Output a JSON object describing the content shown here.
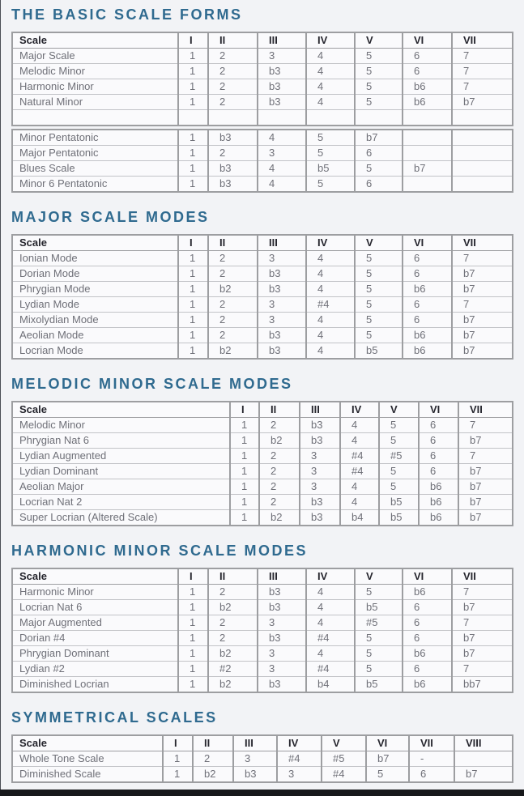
{
  "page": {
    "background_color": "#f2f3f6",
    "accent_color": "#2f6a8f",
    "table_border_color": "#9d9ea1",
    "cell_text_color": "#6f7078",
    "header_text_color": "#26262e",
    "bottom_bar_color": "#17181b"
  },
  "sections": [
    {
      "id": "basic-scale-forms",
      "title": "THE BASIC SCALE FORMS",
      "layout": "basic",
      "tables": [
        {
          "has_header": true,
          "headers": [
            "Scale",
            "I",
            "II",
            "III",
            "IV",
            "V",
            "VI",
            "VII"
          ],
          "rows": [
            [
              "Major Scale",
              "1",
              "2",
              "3",
              "4",
              "5",
              "6",
              "7"
            ],
            [
              "Melodic Minor",
              "1",
              "2",
              "b3",
              "4",
              "5",
              "6",
              "7"
            ],
            [
              "Harmonic Minor",
              "1",
              "2",
              "b3",
              "4",
              "5",
              "b6",
              "7"
            ],
            [
              "Natural Minor",
              "1",
              "2",
              "b3",
              "4",
              "5",
              "b6",
              "b7"
            ],
            [
              "",
              "",
              "",
              "",
              "",
              "",
              "",
              ""
            ]
          ]
        },
        {
          "has_header": false,
          "rows": [
            [
              "Minor Pentatonic",
              "1",
              "b3",
              "4",
              "5",
              "b7",
              "",
              ""
            ],
            [
              "Major Pentatonic",
              "1",
              "2",
              "3",
              "5",
              "6",
              "",
              ""
            ],
            [
              "Blues Scale",
              "1",
              "b3",
              "4",
              "b5",
              "5",
              "b7",
              ""
            ],
            [
              "Minor 6 Pentatonic",
              "1",
              "b3",
              "4",
              "5",
              "6",
              "",
              ""
            ]
          ]
        }
      ]
    },
    {
      "id": "major-scale-modes",
      "title": "MAJOR SCALE MODES",
      "layout": "basic",
      "tables": [
        {
          "has_header": true,
          "headers": [
            "Scale",
            "I",
            "II",
            "III",
            "IV",
            "V",
            "VI",
            "VII"
          ],
          "rows": [
            [
              "Ionian Mode",
              "1",
              "2",
              "3",
              "4",
              "5",
              "6",
              "7"
            ],
            [
              "Dorian Mode",
              "1",
              "2",
              "b3",
              "4",
              "5",
              "6",
              "b7"
            ],
            [
              "Phrygian Mode",
              "1",
              "b2",
              "b3",
              "4",
              "5",
              "b6",
              "b7"
            ],
            [
              "Lydian Mode",
              "1",
              "2",
              "3",
              "#4",
              "5",
              "6",
              "7"
            ],
            [
              "Mixolydian Mode",
              "1",
              "2",
              "3",
              "4",
              "5",
              "6",
              "b7"
            ],
            [
              "Aeolian Mode",
              "1",
              "2",
              "b3",
              "4",
              "5",
              "b6",
              "b7"
            ],
            [
              "Locrian Mode",
              "1",
              "b2",
              "b3",
              "4",
              "b5",
              "b6",
              "b7"
            ]
          ]
        }
      ]
    },
    {
      "id": "melodic-minor-scale-modes",
      "title": "MELODIC MINOR SCALE MODES",
      "layout": "melodic",
      "tables": [
        {
          "has_header": true,
          "headers": [
            "Scale",
            "I",
            "II",
            "III",
            "IV",
            "V",
            "VI",
            "VII"
          ],
          "rows": [
            [
              "Melodic Minor",
              "1",
              "2",
              "b3",
              "4",
              "5",
              "6",
              "7"
            ],
            [
              "Phrygian Nat 6",
              "1",
              "b2",
              "b3",
              "4",
              "5",
              "6",
              "b7"
            ],
            [
              "Lydian Augmented",
              "1",
              "2",
              "3",
              "#4",
              "#5",
              "6",
              "7"
            ],
            [
              "Lydian Dominant",
              "1",
              "2",
              "3",
              "#4",
              "5",
              "6",
              "b7"
            ],
            [
              "Aeolian Major",
              "1",
              "2",
              "3",
              "4",
              "5",
              "b6",
              "b7"
            ],
            [
              "Locrian Nat 2",
              "1",
              "2",
              "b3",
              "4",
              "b5",
              "b6",
              "b7"
            ],
            [
              "Super Locrian (Altered Scale)",
              "1",
              "b2",
              "b3",
              "b4",
              "b5",
              "b6",
              "b7"
            ]
          ]
        }
      ]
    },
    {
      "id": "harmonic-minor-scale-modes",
      "title": "HARMONIC MINOR SCALE MODES",
      "layout": "basic",
      "tables": [
        {
          "has_header": true,
          "headers": [
            "Scale",
            "I",
            "II",
            "III",
            "IV",
            "V",
            "VI",
            "VII"
          ],
          "rows": [
            [
              "Harmonic Minor",
              "1",
              "2",
              "b3",
              "4",
              "5",
              "b6",
              "7"
            ],
            [
              "Locrian Nat 6",
              "1",
              "b2",
              "b3",
              "4",
              "b5",
              "6",
              "b7"
            ],
            [
              "Major Augmented",
              "1",
              "2",
              "3",
              "4",
              "#5",
              "6",
              "7"
            ],
            [
              "Dorian #4",
              "1",
              "2",
              "b3",
              "#4",
              "5",
              "6",
              "b7"
            ],
            [
              "Phrygian Dominant",
              "1",
              "b2",
              "3",
              "4",
              "5",
              "b6",
              "b7"
            ],
            [
              "Lydian #2",
              "1",
              "#2",
              "3",
              "#4",
              "5",
              "6",
              "7"
            ],
            [
              "Diminished Locrian",
              "1",
              "b2",
              "b3",
              "b4",
              "b5",
              "b6",
              "bb7"
            ]
          ]
        }
      ]
    },
    {
      "id": "symmetrical-scales",
      "title": "SYMMETRICAL SCALES",
      "layout": "symmetric",
      "tables": [
        {
          "has_header": true,
          "headers": [
            "Scale",
            "I",
            "II",
            "III",
            "IV",
            "V",
            "VI",
            "VII",
            "VIII"
          ],
          "rows": [
            [
              "Whole Tone Scale",
              "1",
              "2",
              "3",
              "#4",
              "#5",
              "b7",
              "-",
              ""
            ],
            [
              "Diminished Scale",
              "1",
              "b2",
              "b3",
              "3",
              "#4",
              "5",
              "6",
              "b7"
            ]
          ]
        }
      ]
    }
  ]
}
